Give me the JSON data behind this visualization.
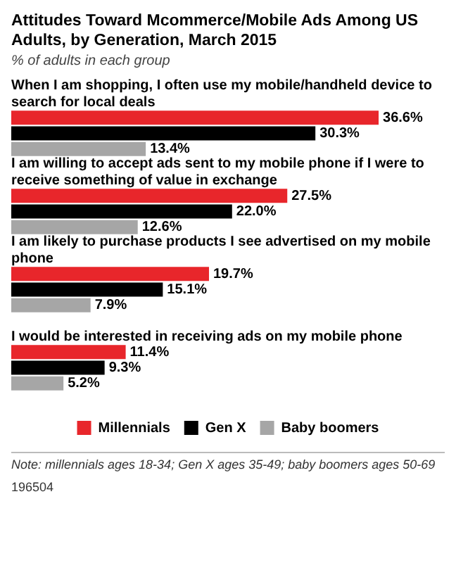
{
  "chart_data": {
    "type": "bar",
    "orientation": "horizontal",
    "title": "Attitudes Toward Mcommerce/Mobile Ads Among US Adults, by Generation, March 2015",
    "subtitle": "% of adults in each group",
    "categories": [
      "When I am shopping, I often use my mobile/handheld device to search for local deals",
      "I am willing to accept ads sent to my mobile phone if I were to receive something of value in exchange",
      "I am likely to purchase products I see advertised on my mobile phone",
      "I would be interested in receiving ads on my mobile phone"
    ],
    "series": [
      {
        "name": "Millennials",
        "color": "#e8262b",
        "values": [
          36.6,
          27.5,
          19.7,
          11.4
        ],
        "value_labels": [
          "36.6%",
          "27.5%",
          "19.7%",
          "11.4%"
        ]
      },
      {
        "name": "Gen X",
        "color": "#000000",
        "values": [
          30.3,
          22.0,
          15.1,
          9.3
        ],
        "value_labels": [
          "30.3%",
          "22.0%",
          "15.1%",
          "9.3%"
        ]
      },
      {
        "name": "Baby boomers",
        "color": "#a6a6a6",
        "values": [
          13.4,
          12.6,
          7.9,
          5.2
        ],
        "value_labels": [
          "13.4%",
          "12.6%",
          "7.9%",
          "5.2%"
        ]
      }
    ],
    "legend": "bottom",
    "annotations": [
      "Note: millennials ages 18-34; Gen X ages 35-49; baby boomers ages 50-69",
      "196504"
    ]
  }
}
